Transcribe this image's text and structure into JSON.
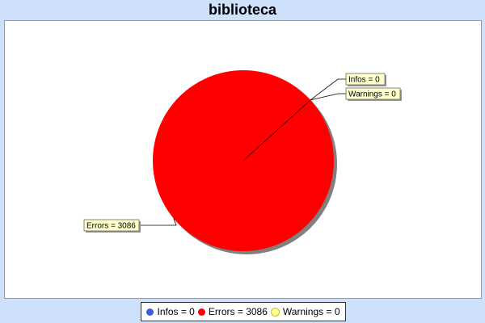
{
  "chart_data": {
    "type": "pie",
    "title": "biblioteca",
    "slices": [
      {
        "label": "Infos",
        "value": 0,
        "color": "#3b5fd8",
        "callout": "Infos = 0",
        "legend": "Infos = 0"
      },
      {
        "label": "Errors",
        "value": 3086,
        "color": "#ff0000",
        "callout": "Errors = 3086",
        "legend": "Errors = 3086"
      },
      {
        "label": "Warnings",
        "value": 0,
        "color": "#ffff99",
        "callout": "Warnings = 0",
        "legend": "Warnings = 0"
      }
    ],
    "legend_position": "bottom"
  },
  "colors": {
    "background": "#cfe0fb",
    "plot_background": "#ffffff",
    "callout_fill": "#ffffcc",
    "shadow": "#808080"
  }
}
